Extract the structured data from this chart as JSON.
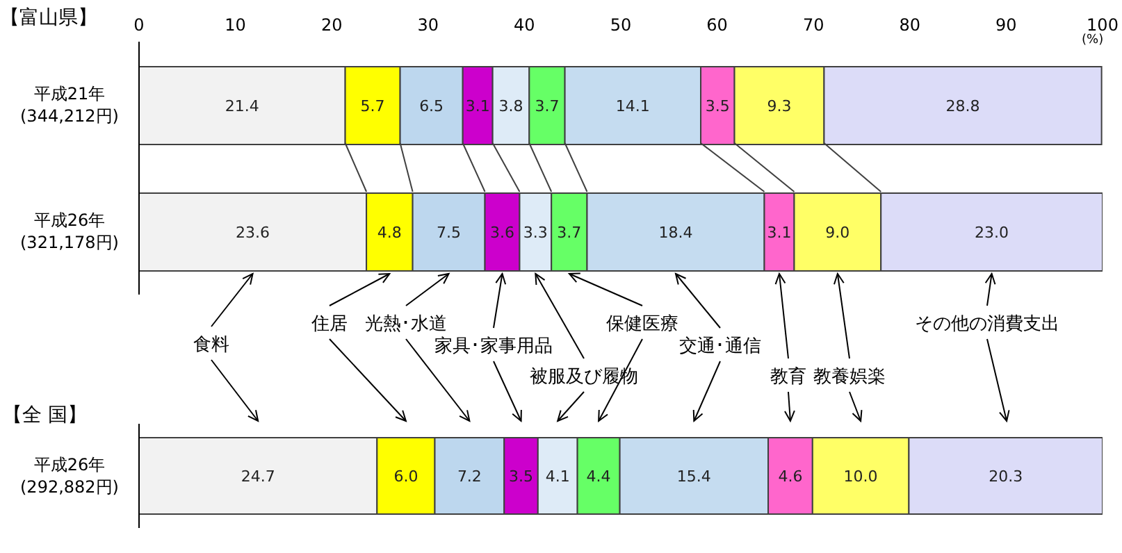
{
  "chart_data": [
    {
      "type": "bar",
      "orientation": "horizontal",
      "stacked": true,
      "title": "【富山県】",
      "xlabel": "(%)",
      "categories": [
        "平成21年\n(344,212円)",
        "平成26年\n(321,178円)"
      ],
      "xlim": [
        0,
        100
      ],
      "xticks": [
        0,
        10,
        20,
        30,
        40,
        50,
        60,
        70,
        80,
        90,
        100
      ],
      "series": [
        {
          "name": "食料",
          "color": "#f2f2f2",
          "values": [
            21.4,
            23.6
          ],
          "value_labels": [
            "21.4",
            "23.6"
          ]
        },
        {
          "name": "住居",
          "color": "#ffff00",
          "values": [
            5.7,
            4.8
          ],
          "value_labels": [
            "5.7",
            "4.8"
          ]
        },
        {
          "name": "光熱･水道",
          "color": "#bdd7ee",
          "values": [
            6.5,
            7.5
          ],
          "value_labels": [
            "6.5",
            "7.5"
          ]
        },
        {
          "name": "家具･家事用品",
          "color": "#cc00cc",
          "values": [
            3.1,
            3.6
          ],
          "value_labels": [
            "3.1",
            "3.6"
          ]
        },
        {
          "name": "被服及び履物",
          "color": "#deebf7",
          "values": [
            3.8,
            3.3
          ],
          "value_labels": [
            "3.8",
            "3.3"
          ]
        },
        {
          "name": "保健医療",
          "color": "#66ff66",
          "values": [
            3.7,
            3.7
          ],
          "value_labels": [
            "3.7",
            "3.7"
          ]
        },
        {
          "name": "交通･通信",
          "color": "#c5dcf0",
          "values": [
            14.1,
            18.4
          ],
          "value_labels": [
            "14.1",
            "18.4"
          ]
        },
        {
          "name": "教育",
          "color": "#ff66cc",
          "values": [
            3.5,
            3.1
          ],
          "value_labels": [
            "3.5",
            "3.1"
          ]
        },
        {
          "name": "教養娯楽",
          "color": "#ffff66",
          "values": [
            9.3,
            9.0
          ],
          "value_labels": [
            "9.3",
            "9.0"
          ]
        },
        {
          "name": "その他の消費支出",
          "color": "#dcdcf8",
          "values": [
            28.8,
            23.0
          ],
          "value_labels": [
            "28.8",
            "23.0"
          ]
        }
      ]
    },
    {
      "type": "bar",
      "orientation": "horizontal",
      "stacked": true,
      "title": "【全 国】",
      "tick_labels": "y",
      "categories": [
        "平成26年\n(292,882円)"
      ],
      "xlim": [
        0,
        100
      ],
      "series": [
        {
          "color": "#f2f2f2",
          "values": [
            24.7
          ],
          "value_labels": [
            "24.7"
          ]
        },
        {
          "color": "#ffff00",
          "values": [
            6.0
          ],
          "value_labels": [
            "6.0"
          ]
        },
        {
          "color": "#bdd7ee",
          "values": [
            7.2
          ],
          "value_labels": [
            "7.2"
          ]
        },
        {
          "color": "#cc00cc",
          "values": [
            3.5
          ],
          "value_labels": [
            "3.5"
          ]
        },
        {
          "color": "#deebf7",
          "values": [
            4.1
          ],
          "value_labels": [
            "4.1"
          ]
        },
        {
          "color": "#66ff66",
          "values": [
            4.4
          ],
          "value_labels": [
            "4.4"
          ]
        },
        {
          "color": "#c5dcf0",
          "values": [
            15.4
          ],
          "value_labels": [
            "15.4"
          ]
        },
        {
          "color": "#ff66cc",
          "values": [
            4.6
          ],
          "value_labels": [
            "4.6"
          ]
        },
        {
          "color": "#ffff66",
          "values": [
            10.0
          ],
          "value_labels": [
            "10.0"
          ]
        },
        {
          "color": "#dcdcf8",
          "values": [
            20.3
          ],
          "value_labels": [
            "20.3"
          ]
        }
      ]
    }
  ]
}
